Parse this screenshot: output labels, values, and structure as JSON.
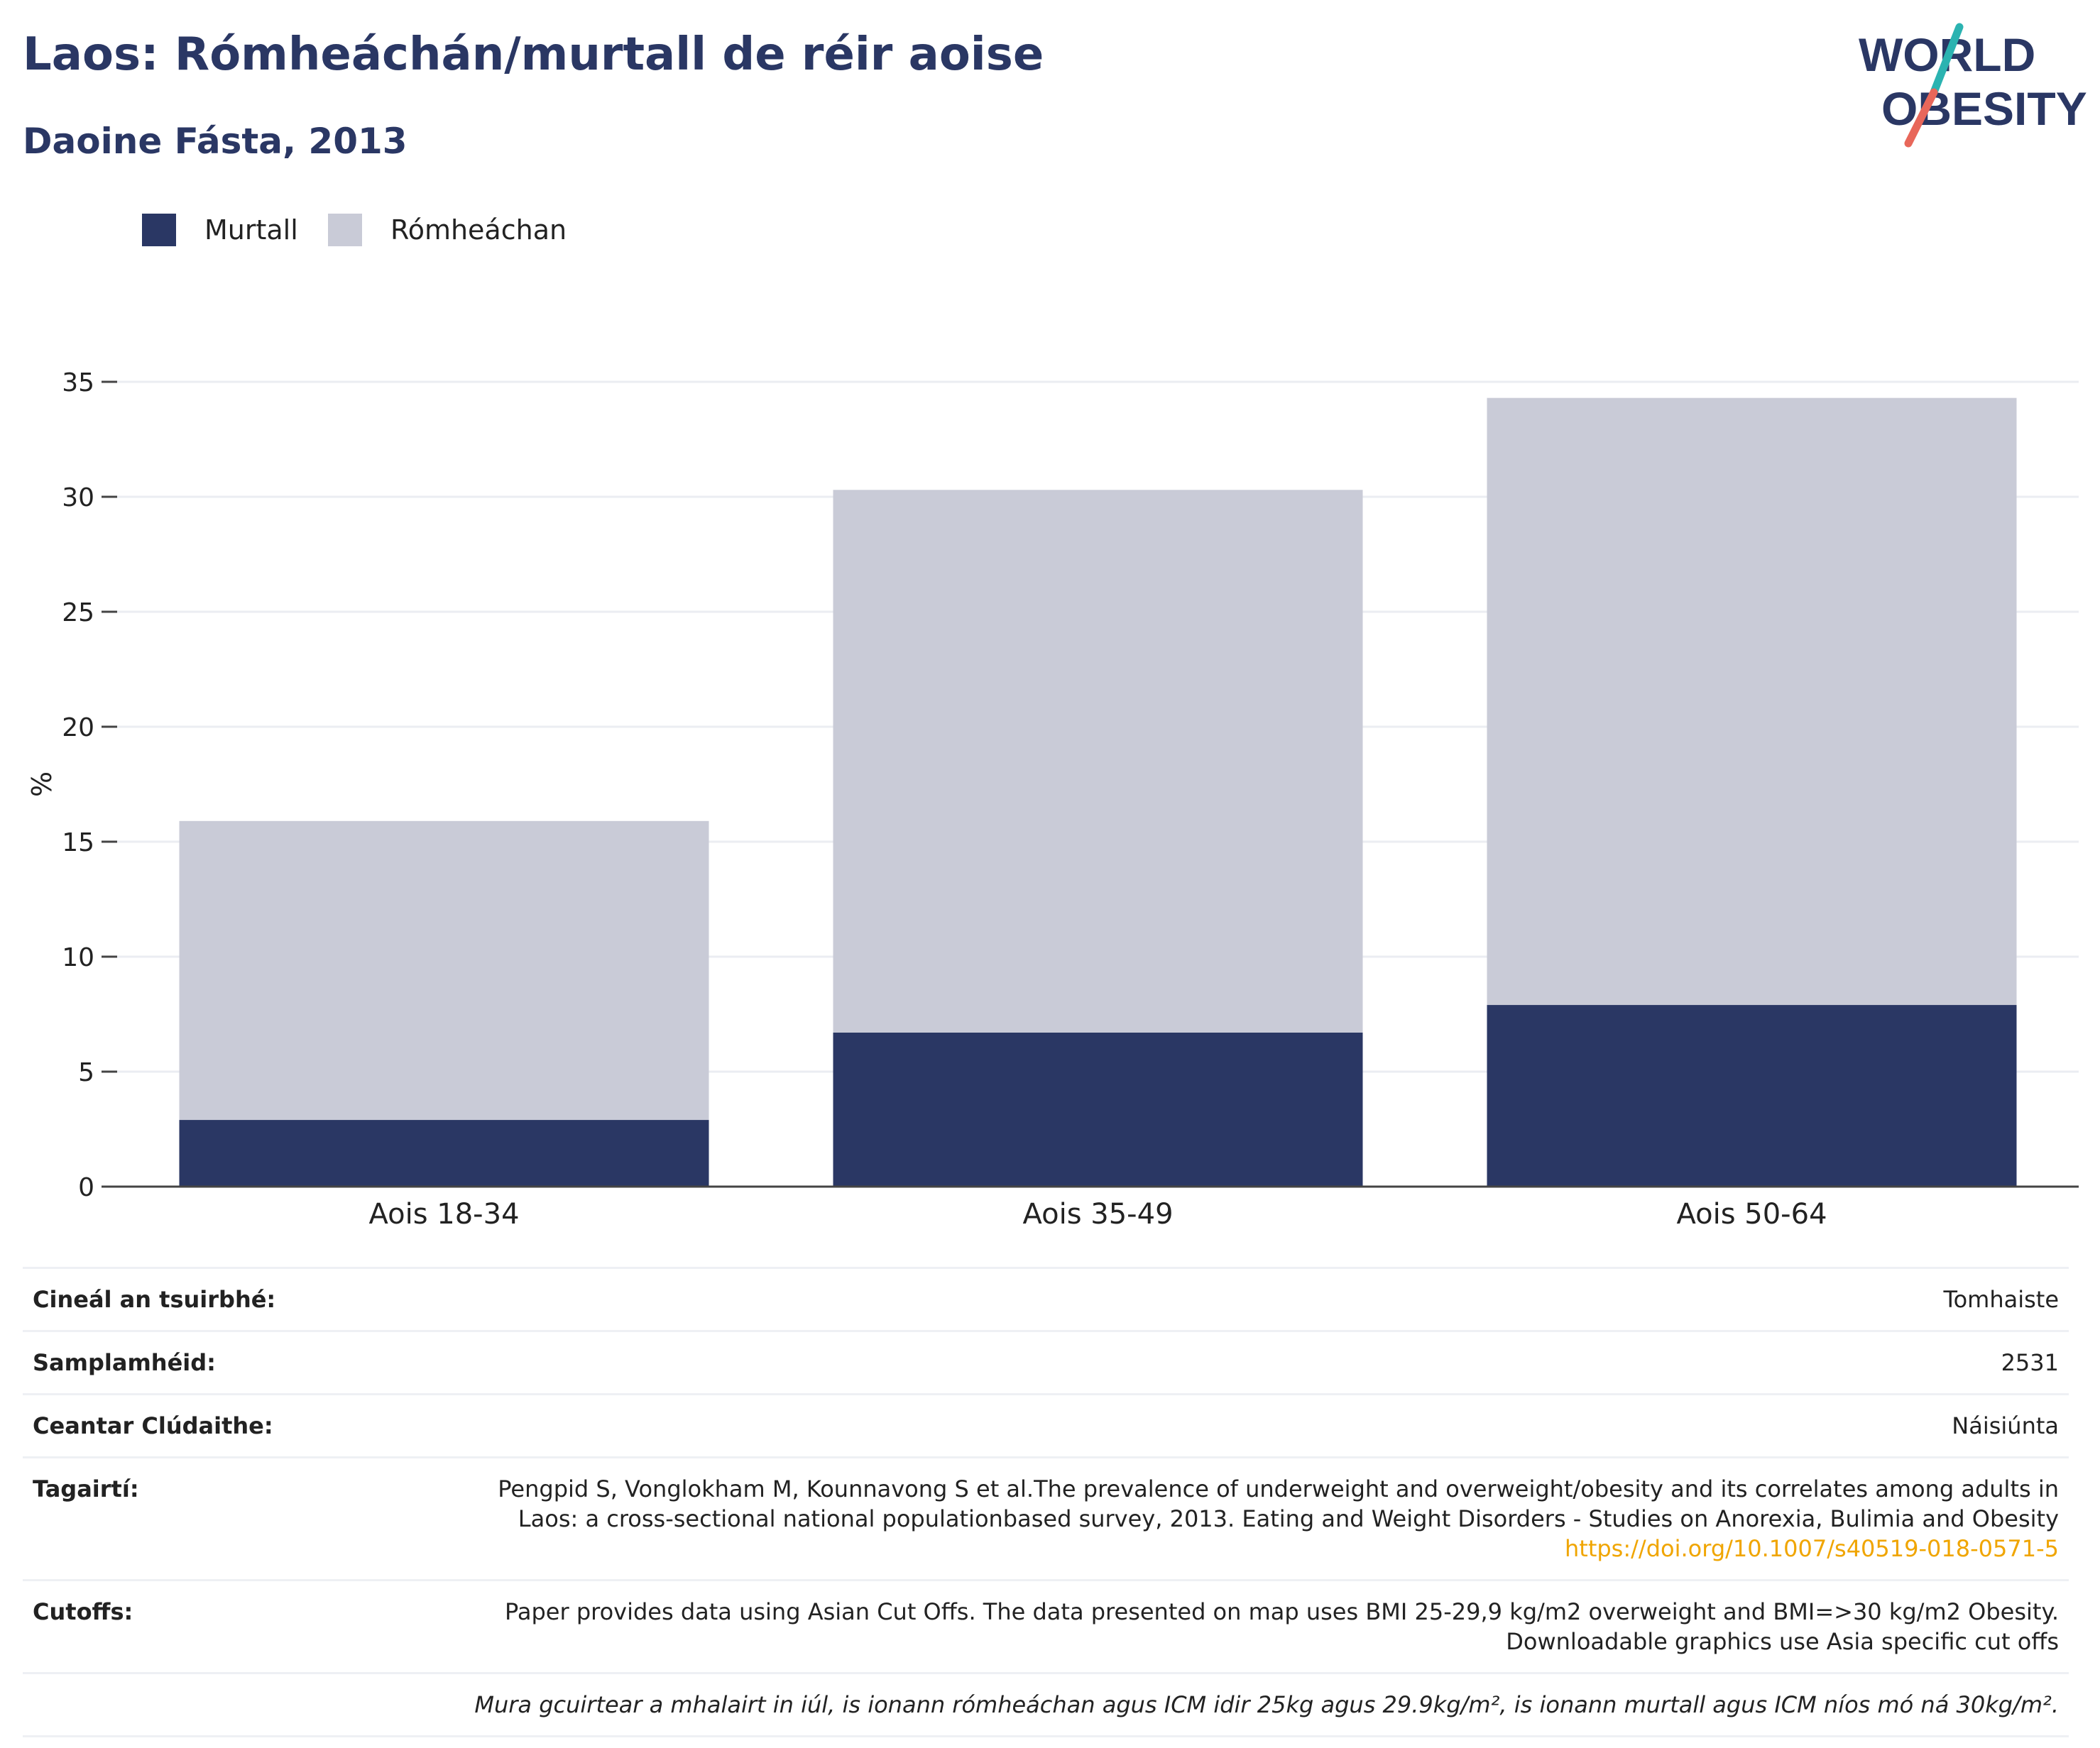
{
  "title": "Laos: Rómheáchán/murtall de réir aoise",
  "subtitle": "Daoine Fásta, 2013",
  "logo": {
    "line1": "WORLD",
    "line2": "OBESITY"
  },
  "legend": [
    {
      "name": "Murtall",
      "color": "#2a3764"
    },
    {
      "name": "Rómheáchan",
      "color": "#c9cbd7"
    }
  ],
  "chart_data": {
    "type": "bar",
    "stacked": true,
    "categories": [
      "Aois 18-34",
      "Aois 35-49",
      "Aois 50-64"
    ],
    "series": [
      {
        "name": "Murtall",
        "values": [
          2.9,
          6.7,
          7.9
        ],
        "color": "#2a3764"
      },
      {
        "name": "Rómheáchan",
        "values": [
          13.0,
          23.6,
          26.4
        ],
        "color": "#c9cbd7"
      }
    ],
    "ylabel": "%",
    "ylim": [
      0,
      35
    ],
    "yticks": [
      0,
      5,
      10,
      15,
      20,
      25,
      30,
      35
    ],
    "grid": true,
    "legend_position": "top-left"
  },
  "info": {
    "survey_type": {
      "label": "Cineál an tsuirbhé:",
      "value": "Tomhaiste"
    },
    "sample_size": {
      "label": "Samplamhéid:",
      "value": "2531"
    },
    "coverage": {
      "label": "Ceantar Clúdaithe:",
      "value": "Náisiúnta"
    },
    "references": {
      "label": "Tagairtí:",
      "text": "Pengpid S, Vonglokham M, Kounnavong S et al.The prevalence of underweight and overweight/obesity and its correlates among adults in Laos: a cross-sectional national populationbased survey, 2013. Eating and Weight Disorders - Studies on Anorexia, Bulimia and Obesity",
      "link": "https://doi.org/10.1007/s40519-018-0571-5"
    },
    "cutoffs": {
      "label": "Cutoffs:",
      "value": "Paper provides data using Asian Cut Offs. The data presented on map uses BMI 25-29,9 kg/m2 overweight and BMI=>30 kg/m2 Obesity. Downloadable graphics use Asia specific cut offs"
    },
    "note": "Mura gcuirtear a mhalairt in iúl, is ionann rómheáchan agus ICM idir 25kg agus 29.9kg/m², is ionann murtall agus ICM níos mó ná 30kg/m²."
  }
}
